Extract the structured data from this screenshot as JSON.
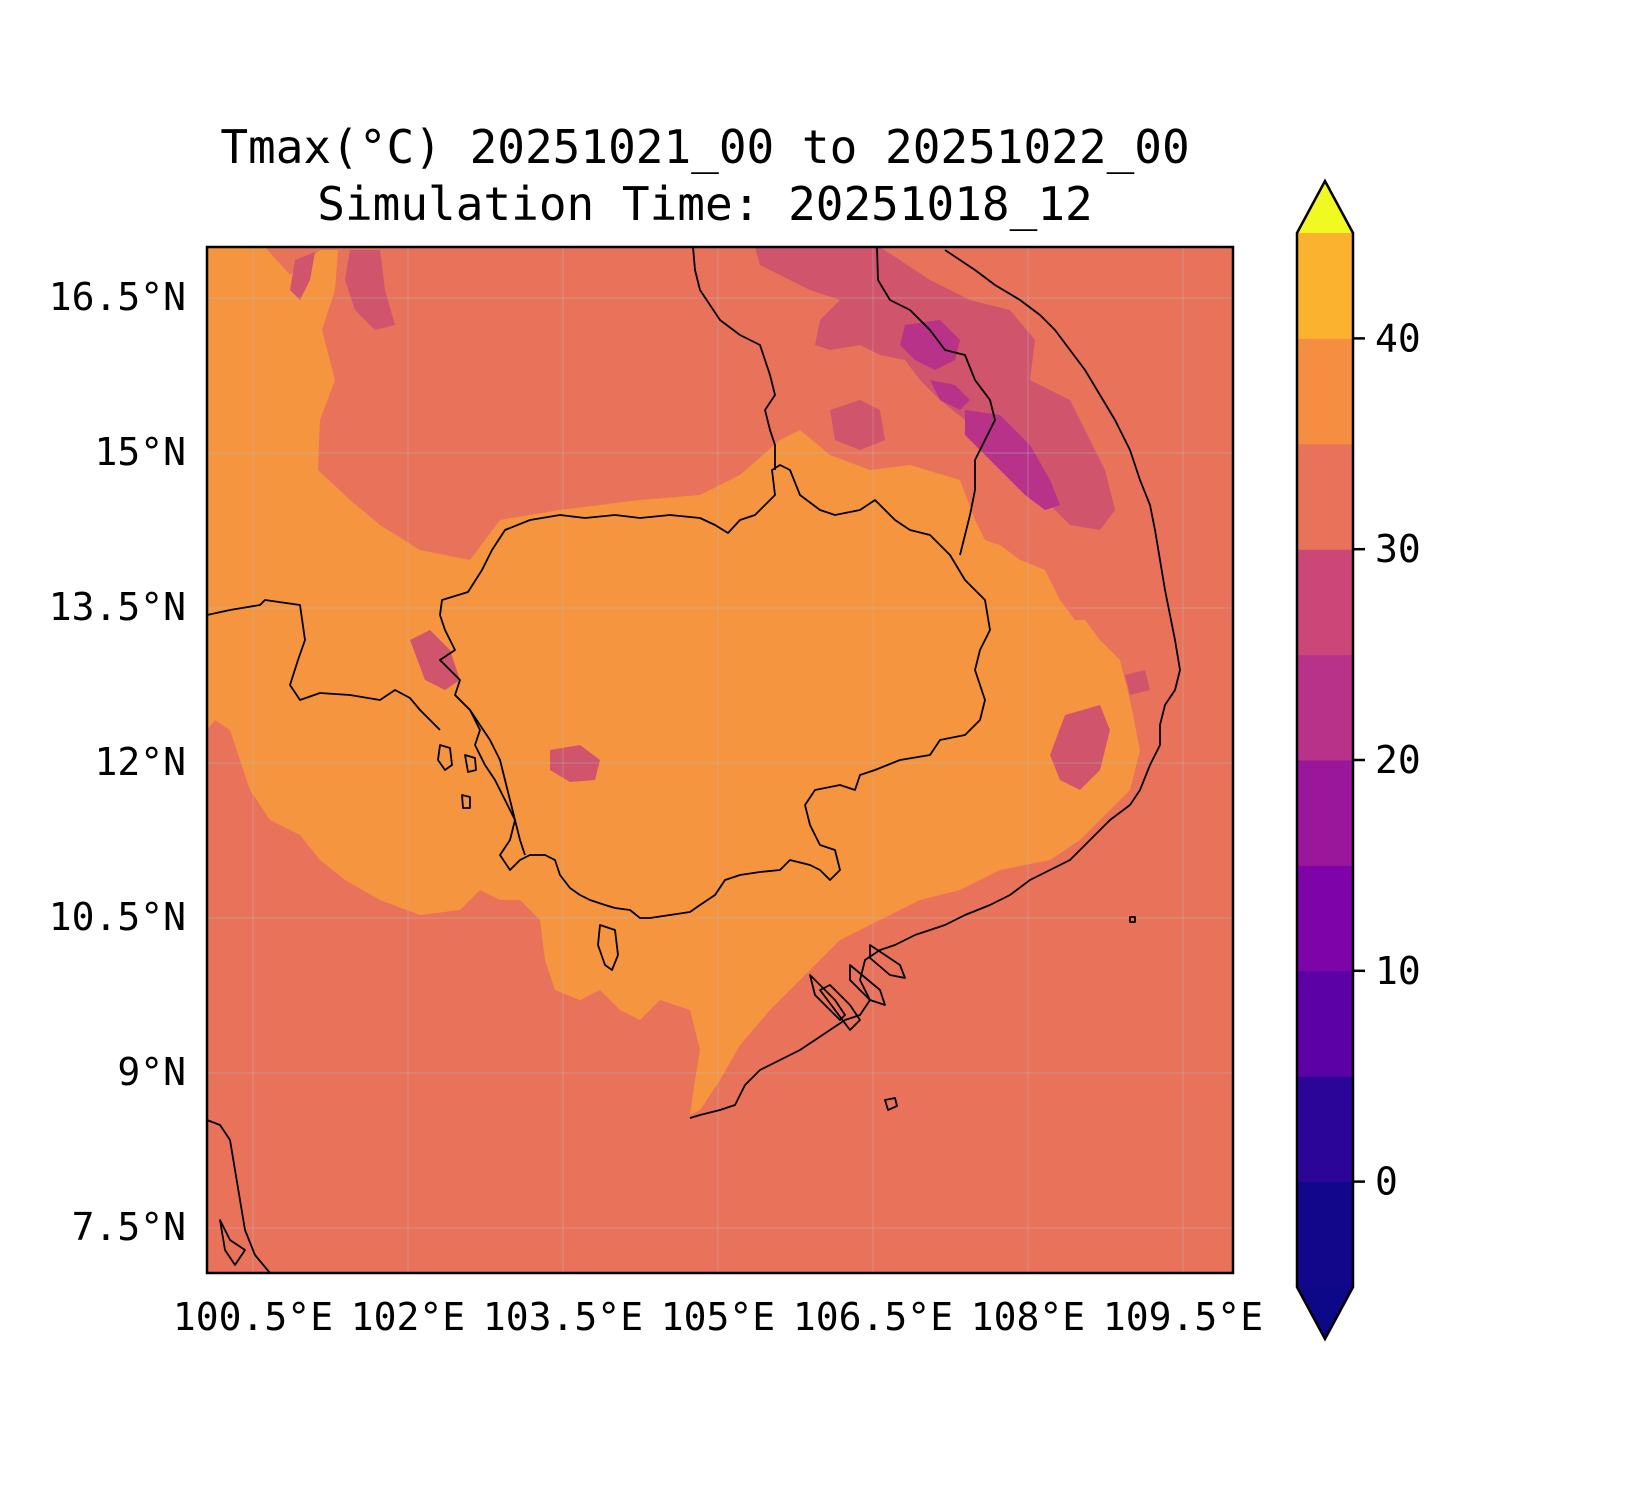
{
  "title": {
    "line1": "Tmax(°C) 20251021_00 to 20251022_00",
    "line2": "Simulation Time: 20251018_12"
  },
  "map": {
    "variable": "Tmax",
    "units": "°C",
    "lon_range": [
      100.0,
      109.9
    ],
    "lat_range": [
      7.2,
      17.1
    ],
    "grid": true,
    "lat_ticks": [
      "16.5°N",
      "15°N",
      "13.5°N",
      "12°N",
      "10.5°N",
      "9°N",
      "7.5°N"
    ],
    "lon_ticks": [
      "100.5°E",
      "102°E",
      "103.5°E",
      "105°E",
      "106.5°E",
      "108°E",
      "109.5°E"
    ]
  },
  "colorbar": {
    "levels": [
      -5,
      0,
      5,
      10,
      15,
      20,
      25,
      30,
      35,
      40,
      45
    ],
    "tick_labels": [
      "0",
      "10",
      "20",
      "30",
      "40"
    ],
    "colors": [
      "#12068a",
      "#2b0598",
      "#5c01a6",
      "#7e03a8",
      "#9a179b",
      "#b83289",
      "#cc4778",
      "#e8735a",
      "#f58e40",
      "#fbb32f",
      "#f1e62b"
    ],
    "extend": "both",
    "under_color": "#0d0887",
    "over_color": "#f0f921"
  },
  "colors": {
    "field_20_25": "#d0546c",
    "field_15_20": "#b83289",
    "field_25_30": "#e8735a",
    "field_30_35": "#f59540",
    "coastline": "#000000"
  }
}
